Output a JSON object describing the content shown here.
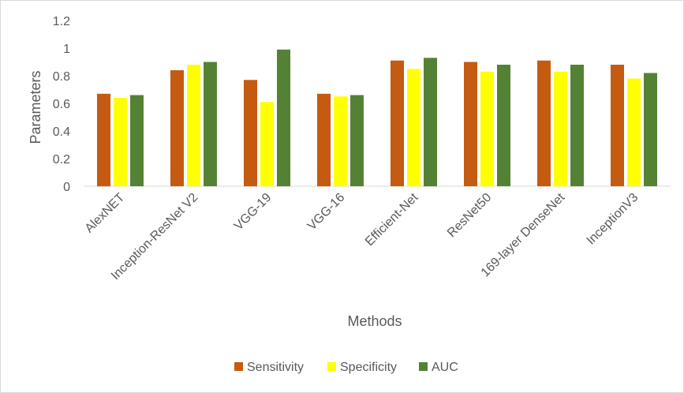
{
  "chart_data": {
    "type": "bar",
    "title": "",
    "xlabel": "Methods",
    "ylabel": "Parameters",
    "ylim": [
      0,
      1.2
    ],
    "yticks": [
      0,
      0.2,
      0.4,
      0.6,
      0.8,
      1,
      1.2
    ],
    "grid": false,
    "legend_position": "bottom",
    "categories": [
      "AlexNET",
      "Inception-ResNet V2",
      "VGG-19",
      "VGG-16",
      "Efficient-Net",
      "ResNet50",
      "169-layer DenseNet",
      "InceptionV3"
    ],
    "series": [
      {
        "name": "Sensitivity",
        "color": "#c55a11",
        "values": [
          0.67,
          0.84,
          0.77,
          0.67,
          0.91,
          0.9,
          0.91,
          0.88
        ]
      },
      {
        "name": "Specificity",
        "color": "#ffff00",
        "values": [
          0.64,
          0.88,
          0.61,
          0.65,
          0.85,
          0.83,
          0.83,
          0.78
        ]
      },
      {
        "name": "AUC",
        "color": "#548235",
        "values": [
          0.66,
          0.9,
          0.99,
          0.66,
          0.93,
          0.88,
          0.88,
          0.82
        ]
      }
    ]
  }
}
